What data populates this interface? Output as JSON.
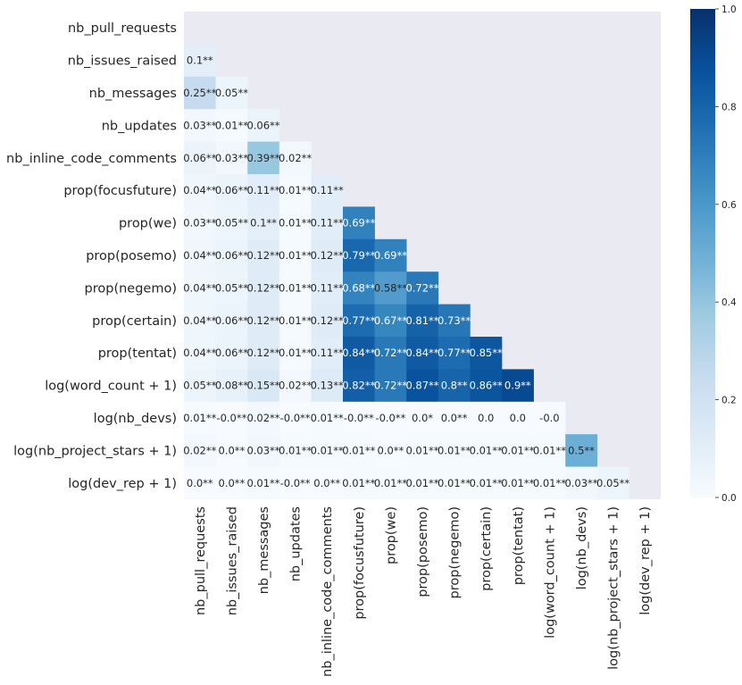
{
  "chart_data": {
    "type": "heatmap",
    "title": "",
    "variables": [
      "nb_pull_requests",
      "nb_issues_raised",
      "nb_messages",
      "nb_updates",
      "nb_inline_code_comments",
      "prop(focusfuture)",
      "prop(we)",
      "prop(posemo)",
      "prop(negemo)",
      "prop(certain)",
      "prop(tentat)",
      "log(word_count + 1)",
      "log(nb_devs)",
      "log(nb_project_stars + 1)",
      "log(dev_rep + 1)"
    ],
    "mask": "upper-triangle-including-diagonal",
    "colormap": "Blues",
    "vmin": 0.0,
    "vmax": 1.0,
    "colorbar_ticks": [
      "0.0",
      "0.2",
      "0.4",
      "0.6",
      "0.8",
      "1.0"
    ],
    "cells": [
      [],
      [
        {
          "value": 0.1,
          "label": "0.1**"
        }
      ],
      [
        {
          "value": 0.25,
          "label": "0.25**"
        },
        {
          "value": 0.05,
          "label": "0.05**"
        }
      ],
      [
        {
          "value": 0.03,
          "label": "0.03**"
        },
        {
          "value": 0.01,
          "label": "0.01**"
        },
        {
          "value": 0.06,
          "label": "0.06**"
        }
      ],
      [
        {
          "value": 0.06,
          "label": "0.06**"
        },
        {
          "value": 0.03,
          "label": "0.03**"
        },
        {
          "value": 0.39,
          "label": "0.39**"
        },
        {
          "value": 0.02,
          "label": "0.02**"
        }
      ],
      [
        {
          "value": 0.04,
          "label": "0.04**"
        },
        {
          "value": 0.06,
          "label": "0.06**"
        },
        {
          "value": 0.11,
          "label": "0.11**"
        },
        {
          "value": 0.01,
          "label": "0.01**"
        },
        {
          "value": 0.11,
          "label": "0.11**"
        }
      ],
      [
        {
          "value": 0.03,
          "label": "0.03**"
        },
        {
          "value": 0.05,
          "label": "0.05**"
        },
        {
          "value": 0.1,
          "label": "0.1**"
        },
        {
          "value": 0.01,
          "label": "0.01**"
        },
        {
          "value": 0.11,
          "label": "0.11**"
        },
        {
          "value": 0.69,
          "label": "0.69**"
        }
      ],
      [
        {
          "value": 0.04,
          "label": "0.04**"
        },
        {
          "value": 0.06,
          "label": "0.06**"
        },
        {
          "value": 0.12,
          "label": "0.12**"
        },
        {
          "value": 0.01,
          "label": "0.01**"
        },
        {
          "value": 0.12,
          "label": "0.12**"
        },
        {
          "value": 0.79,
          "label": "0.79**"
        },
        {
          "value": 0.69,
          "label": "0.69**"
        }
      ],
      [
        {
          "value": 0.04,
          "label": "0.04**"
        },
        {
          "value": 0.05,
          "label": "0.05**"
        },
        {
          "value": 0.12,
          "label": "0.12**"
        },
        {
          "value": 0.01,
          "label": "0.01**"
        },
        {
          "value": 0.11,
          "label": "0.11**"
        },
        {
          "value": 0.68,
          "label": "0.68**"
        },
        {
          "value": 0.58,
          "label": "0.58**"
        },
        {
          "value": 0.72,
          "label": "0.72**"
        }
      ],
      [
        {
          "value": 0.04,
          "label": "0.04**"
        },
        {
          "value": 0.06,
          "label": "0.06**"
        },
        {
          "value": 0.12,
          "label": "0.12**"
        },
        {
          "value": 0.01,
          "label": "0.01**"
        },
        {
          "value": 0.12,
          "label": "0.12**"
        },
        {
          "value": 0.77,
          "label": "0.77**"
        },
        {
          "value": 0.67,
          "label": "0.67**"
        },
        {
          "value": 0.81,
          "label": "0.81**"
        },
        {
          "value": 0.73,
          "label": "0.73**"
        }
      ],
      [
        {
          "value": 0.04,
          "label": "0.04**"
        },
        {
          "value": 0.06,
          "label": "0.06**"
        },
        {
          "value": 0.12,
          "label": "0.12**"
        },
        {
          "value": 0.01,
          "label": "0.01**"
        },
        {
          "value": 0.11,
          "label": "0.11**"
        },
        {
          "value": 0.84,
          "label": "0.84**"
        },
        {
          "value": 0.72,
          "label": "0.72**"
        },
        {
          "value": 0.84,
          "label": "0.84**"
        },
        {
          "value": 0.77,
          "label": "0.77**"
        },
        {
          "value": 0.85,
          "label": "0.85**"
        }
      ],
      [
        {
          "value": 0.05,
          "label": "0.05**"
        },
        {
          "value": 0.08,
          "label": "0.08**"
        },
        {
          "value": 0.15,
          "label": "0.15**"
        },
        {
          "value": 0.02,
          "label": "0.02**"
        },
        {
          "value": 0.13,
          "label": "0.13**"
        },
        {
          "value": 0.82,
          "label": "0.82**"
        },
        {
          "value": 0.72,
          "label": "0.72**"
        },
        {
          "value": 0.87,
          "label": "0.87**"
        },
        {
          "value": 0.8,
          "label": "0.8**"
        },
        {
          "value": 0.86,
          "label": "0.86**"
        },
        {
          "value": 0.9,
          "label": "0.9**"
        }
      ],
      [
        {
          "value": 0.01,
          "label": "0.01**"
        },
        {
          "value": -0.0,
          "label": "-0.0**"
        },
        {
          "value": 0.02,
          "label": "0.02**"
        },
        {
          "value": -0.0,
          "label": "-0.0**"
        },
        {
          "value": 0.01,
          "label": "0.01**"
        },
        {
          "value": -0.0,
          "label": "-0.0**"
        },
        {
          "value": -0.0,
          "label": "-0.0**"
        },
        {
          "value": 0.0,
          "label": "0.0*"
        },
        {
          "value": 0.0,
          "label": "0.0**"
        },
        {
          "value": 0.0,
          "label": "0.0"
        },
        {
          "value": 0.0,
          "label": "0.0"
        },
        {
          "value": -0.0,
          "label": "-0.0"
        }
      ],
      [
        {
          "value": 0.02,
          "label": "0.02**"
        },
        {
          "value": 0.0,
          "label": "0.0**"
        },
        {
          "value": 0.03,
          "label": "0.03**"
        },
        {
          "value": 0.01,
          "label": "0.01**"
        },
        {
          "value": 0.01,
          "label": "0.01**"
        },
        {
          "value": 0.01,
          "label": "0.01**"
        },
        {
          "value": 0.0,
          "label": "0.0**"
        },
        {
          "value": 0.01,
          "label": "0.01**"
        },
        {
          "value": 0.01,
          "label": "0.01**"
        },
        {
          "value": 0.01,
          "label": "0.01**"
        },
        {
          "value": 0.01,
          "label": "0.01**"
        },
        {
          "value": 0.01,
          "label": "0.01**"
        },
        {
          "value": 0.5,
          "label": "0.5**"
        }
      ],
      [
        {
          "value": 0.0,
          "label": "0.0**"
        },
        {
          "value": 0.0,
          "label": "0.0**"
        },
        {
          "value": 0.01,
          "label": "0.01**"
        },
        {
          "value": -0.0,
          "label": "-0.0**"
        },
        {
          "value": 0.0,
          "label": "0.0**"
        },
        {
          "value": 0.01,
          "label": "0.01**"
        },
        {
          "value": 0.01,
          "label": "0.01**"
        },
        {
          "value": 0.01,
          "label": "0.01**"
        },
        {
          "value": 0.01,
          "label": "0.01**"
        },
        {
          "value": 0.01,
          "label": "0.01**"
        },
        {
          "value": 0.01,
          "label": "0.01**"
        },
        {
          "value": 0.01,
          "label": "0.01**"
        },
        {
          "value": 0.03,
          "label": "0.03**"
        },
        {
          "value": 0.05,
          "label": "0.05**"
        }
      ]
    ]
  }
}
